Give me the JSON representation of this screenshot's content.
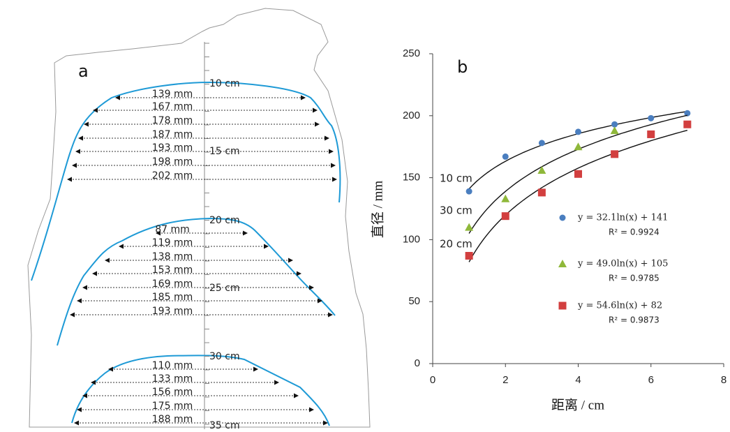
{
  "panel_a": {
    "label": "a",
    "depth_labels": [
      "10 cm",
      "15 cm",
      "20 cm",
      "25 cm",
      "30 cm",
      "35 cm"
    ],
    "profiles": [
      {
        "widths": [
          "139 mm",
          "167 mm",
          "178 mm",
          "187 mm",
          "193 mm",
          "198 mm",
          "202 mm"
        ]
      },
      {
        "widths": [
          "87 mm",
          "119 mm",
          "138 mm",
          "153 mm",
          "169 mm",
          "185 mm",
          "193 mm"
        ]
      },
      {
        "widths": [
          "110 mm",
          "133 mm",
          "156 mm",
          "175 mm",
          "188 mm"
        ]
      }
    ]
  },
  "chart_data": {
    "type": "scatter",
    "panel_label": "b",
    "x_label": "距离 / cm",
    "y_label": "直径 / mm",
    "xlim": [
      0,
      8
    ],
    "xticks": [
      0,
      2,
      4,
      6,
      8
    ],
    "ylim": [
      0,
      250
    ],
    "yticks": [
      0,
      50,
      100,
      150,
      200,
      250
    ],
    "series": [
      {
        "name": "10 cm",
        "color": "#4a7ebf",
        "marker": "circle",
        "x": [
          1,
          2,
          3,
          4,
          5,
          6,
          7
        ],
        "values": [
          139,
          167,
          178,
          187,
          193,
          198,
          202
        ],
        "fit": {
          "a": 32.1,
          "b": 141,
          "equation": "y = 32.1ln(x) + 141",
          "r2": "R² = 0.9924"
        }
      },
      {
        "name": "30 cm",
        "color": "#8fb83a",
        "marker": "triangle",
        "x": [
          1,
          2,
          3,
          4,
          5
        ],
        "values": [
          110,
          133,
          156,
          175,
          188
        ],
        "fit": {
          "a": 49.0,
          "b": 105,
          "equation": "y = 49.0ln(x) + 105",
          "r2": "R² = 0.9785"
        }
      },
      {
        "name": "20 cm",
        "color": "#d23f3f",
        "marker": "square",
        "x": [
          1,
          2,
          3,
          4,
          5,
          6,
          7
        ],
        "values": [
          87,
          119,
          138,
          153,
          169,
          185,
          193
        ],
        "fit": {
          "a": 54.6,
          "b": 82,
          "equation": "y = 54.6ln(x) + 82",
          "r2": "R² = 0.9873"
        }
      }
    ]
  }
}
